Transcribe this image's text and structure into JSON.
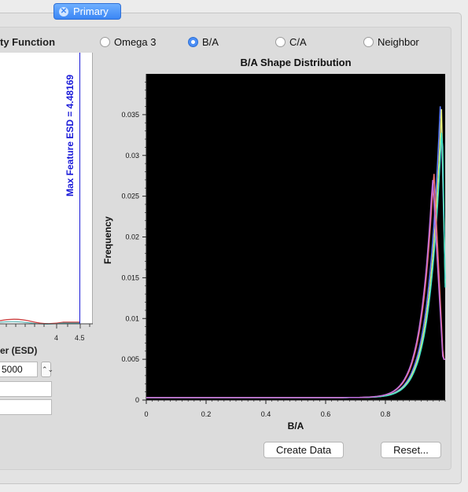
{
  "tab": {
    "label": "Primary"
  },
  "left": {
    "title": "ty Function",
    "marker_label": "Max Feature ESD = 4.48169",
    "ticks": [
      "4",
      "4.5"
    ],
    "axis_title": "er (ESD)",
    "bins_value": "5000",
    "field2_value": "",
    "field3_value": ""
  },
  "radios": [
    {
      "label": "Omega 3",
      "selected": false
    },
    {
      "label": "B/A",
      "selected": true
    },
    {
      "label": "C/A",
      "selected": false
    },
    {
      "label": "Neighbor",
      "selected": false
    }
  ],
  "buttons": {
    "create": "Create Data",
    "reset": "Reset..."
  },
  "chart_data": {
    "type": "line",
    "title": "B/A Shape Distribution",
    "xlabel": "B/A",
    "ylabel": "Frequency",
    "xlim": [
      0,
      1
    ],
    "ylim": [
      0,
      0.04
    ],
    "xticks": [
      "0",
      "0.2",
      "0.4",
      "0.6",
      "0.8"
    ],
    "yticks": [
      "0",
      "0.005",
      "0.01",
      "0.015",
      "0.02",
      "0.025",
      "0.03",
      "0.035"
    ],
    "background": "#000000",
    "series": [
      {
        "color": "#5b7cff",
        "peak_x": 0.985,
        "peak_y": 0.0372
      },
      {
        "color": "#e9f07a",
        "peak_x": 0.988,
        "peak_y": 0.0358
      },
      {
        "color": "#40e0c8",
        "peak_x": 0.99,
        "peak_y": 0.0345
      },
      {
        "color": "#f07070",
        "peak_x": 0.962,
        "peak_y": 0.0281
      },
      {
        "color": "#c070e0",
        "peak_x": 0.958,
        "peak_y": 0.0272
      }
    ]
  }
}
